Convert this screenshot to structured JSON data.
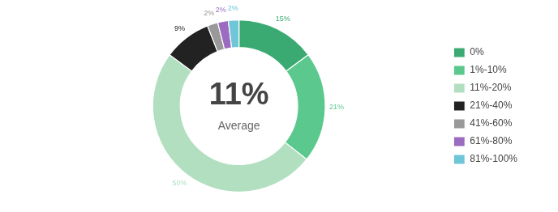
{
  "chart_data": {
    "type": "doughnut",
    "categories": [
      "0%",
      "1%-10%",
      "11%-20%",
      "21%-40%",
      "41%-60%",
      "61%-80%",
      "81%-100%"
    ],
    "values": [
      15,
      21,
      50,
      9,
      2,
      2,
      2
    ],
    "value_labels": [
      "15%",
      "21%",
      "50%",
      "9%",
      "2%",
      "2%",
      "2%"
    ],
    "colors": [
      "#3aaa72",
      "#5bc88e",
      "#b2dfc0",
      "#222222",
      "#999999",
      "#9b6bbf",
      "#6ec6d8"
    ],
    "data_labels": true,
    "annotations": [
      "11%",
      "Average"
    ],
    "legend": "right"
  }
}
